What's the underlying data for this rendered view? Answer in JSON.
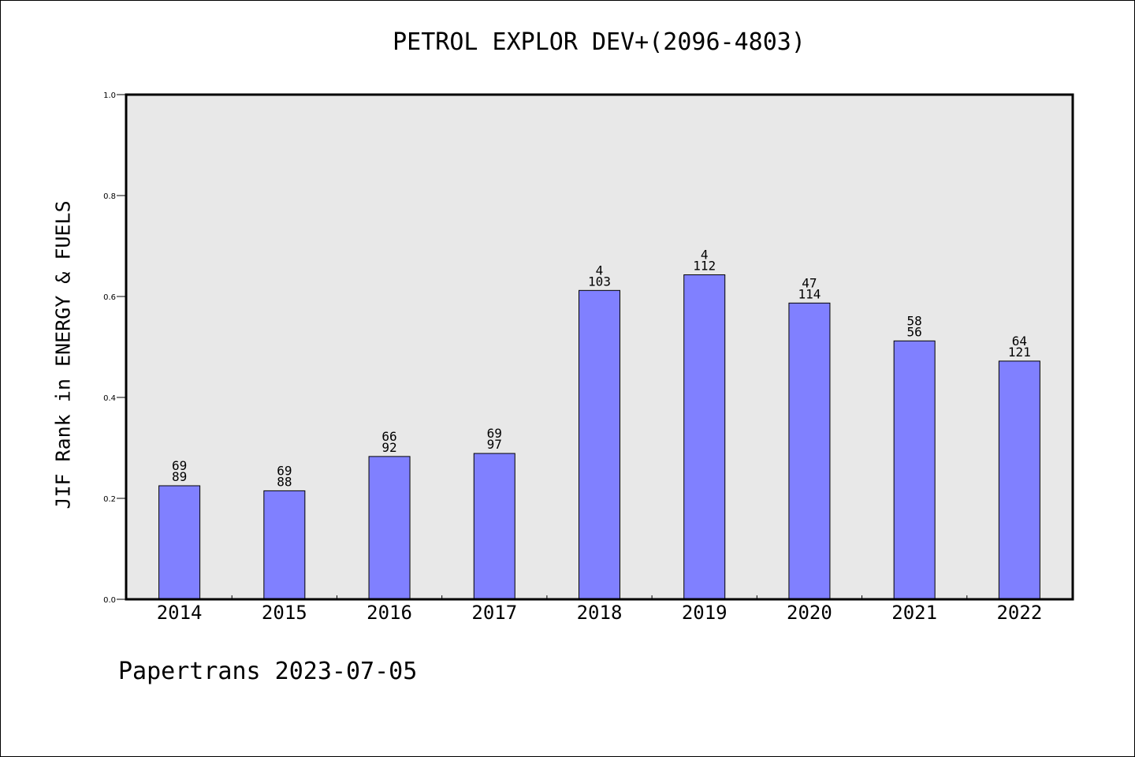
{
  "chart_data": {
    "type": "bar",
    "title": "PETROL EXPLOR DEV+(2096-4803)",
    "ylabel": "JIF Rank in ENERGY & FUELS",
    "xlabel": "",
    "categories": [
      "2014",
      "2015",
      "2016",
      "2017",
      "2018",
      "2019",
      "2020",
      "2021",
      "2022"
    ],
    "values": [
      0.225,
      0.215,
      0.283,
      0.289,
      0.612,
      0.643,
      0.587,
      0.512,
      0.472
    ],
    "labels_top": [
      "69",
      "69",
      "66",
      "69",
      "4",
      "4",
      "47",
      "58",
      "64"
    ],
    "labels_bottom": [
      "89",
      "88",
      "92",
      "97",
      "103",
      "112",
      "114",
      "56",
      "121"
    ],
    "ylim": [
      0,
      1.0
    ],
    "yticks": [
      "0.0",
      "0.2",
      "0.4",
      "0.6",
      "0.8",
      "1.0"
    ],
    "grid": false,
    "bar_color": "#8080ff",
    "plot_background": "#e8e8e8"
  },
  "footer": "Papertrans 2023-07-05"
}
